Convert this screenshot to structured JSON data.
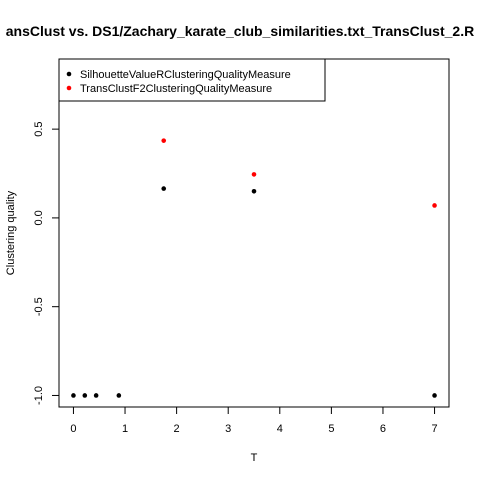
{
  "chart_data": {
    "type": "scatter",
    "title": "ansClust vs. DS1/Zachary_karate_club_similarities.txt_TransClust_2.R",
    "xlabel": "T",
    "ylabel": "Clustering quality",
    "xlim": [
      -0.28,
      7.28
    ],
    "ylim": [
      -1.065,
      0.895
    ],
    "x_ticks": [
      0,
      1,
      2,
      3,
      4,
      5,
      6,
      7
    ],
    "x_tick_labels": [
      "0",
      "1",
      "2",
      "3",
      "4",
      "5",
      "6",
      "7"
    ],
    "y_ticks": [
      -1.0,
      -0.5,
      0.0,
      0.5
    ],
    "y_tick_labels": [
      "-1.0",
      "-0.5",
      "0.0",
      "0.5"
    ],
    "grid": false,
    "legend_position": "top-left",
    "series": [
      {
        "name": "SilhouetteValueRClusteringQualityMeasure",
        "color": "#000000",
        "points": [
          {
            "x": 0.0,
            "y": -1.0
          },
          {
            "x": 0.22,
            "y": -1.0
          },
          {
            "x": 0.44,
            "y": -1.0
          },
          {
            "x": 0.88,
            "y": -1.0
          },
          {
            "x": 1.75,
            "y": 0.165
          },
          {
            "x": 3.5,
            "y": 0.15
          },
          {
            "x": 7.0,
            "y": -1.0
          }
        ]
      },
      {
        "name": "TransClustF2ClusteringQualityMeasure",
        "color": "#ff0000",
        "points": [
          {
            "x": 1.75,
            "y": 0.435
          },
          {
            "x": 3.5,
            "y": 0.245
          },
          {
            "x": 7.0,
            "y": 0.07
          }
        ]
      }
    ]
  }
}
